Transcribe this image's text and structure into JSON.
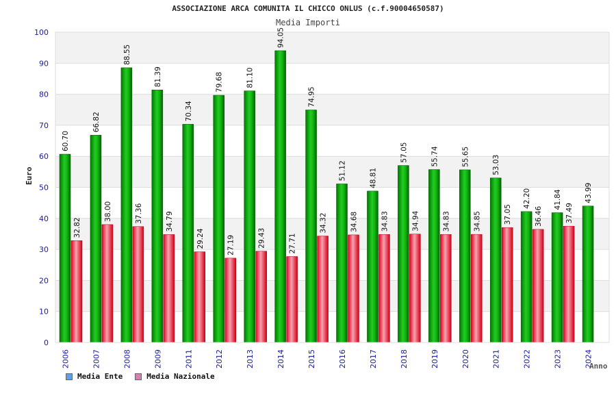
{
  "chart_data": {
    "type": "bar",
    "title": "ASSOCIAZIONE ARCA COMUNITA IL CHICCO ONLUS (c.f.90004650587)",
    "subtitle": "Media Importi",
    "xlabel": "Anno",
    "ylabel": "Euro",
    "ylim": [
      0,
      100
    ],
    "yticks": [
      0,
      10,
      20,
      30,
      40,
      50,
      60,
      70,
      80,
      90,
      100
    ],
    "grid": true,
    "legend_position": "bottom-left",
    "categories": [
      "2006",
      "2007",
      "2008",
      "2009",
      "2011",
      "2012",
      "2013",
      "2014",
      "2015",
      "2016",
      "2017",
      "2018",
      "2019",
      "2020",
      "2021",
      "2022",
      "2023",
      "2024"
    ],
    "series": [
      {
        "name": "Media Ente",
        "color": "#16b816",
        "legend_color": "#5aa0ea",
        "values": [
          60.7,
          66.82,
          88.55,
          81.39,
          70.34,
          79.68,
          81.1,
          94.05,
          74.95,
          51.12,
          48.81,
          57.05,
          55.74,
          55.65,
          53.03,
          42.2,
          41.84,
          43.99
        ],
        "labels": [
          "60.70",
          "66.82",
          "88.55",
          "81.39",
          "70.34",
          "79.68",
          "81.10",
          "94.05",
          "74.95",
          "51.12",
          "48.81",
          "57.05",
          "55.74",
          "55.65",
          "53.03",
          "42.20",
          "41.84",
          "43.99"
        ]
      },
      {
        "name": "Media Nazionale",
        "color": "#e8203a",
        "legend_color": "#d77fae",
        "values": [
          32.82,
          38.0,
          37.36,
          34.79,
          29.24,
          27.19,
          29.43,
          27.71,
          34.32,
          34.68,
          34.83,
          34.94,
          34.83,
          34.85,
          37.05,
          36.46,
          37.49,
          null
        ],
        "labels": [
          "32.82",
          "38.00",
          "37.36",
          "34.79",
          "29.24",
          "27.19",
          "29.43",
          "27.71",
          "34.32",
          "34.68",
          "34.83",
          "34.94",
          "34.83",
          "34.85",
          "37.05",
          "36.46",
          "37.49",
          ""
        ]
      }
    ]
  }
}
